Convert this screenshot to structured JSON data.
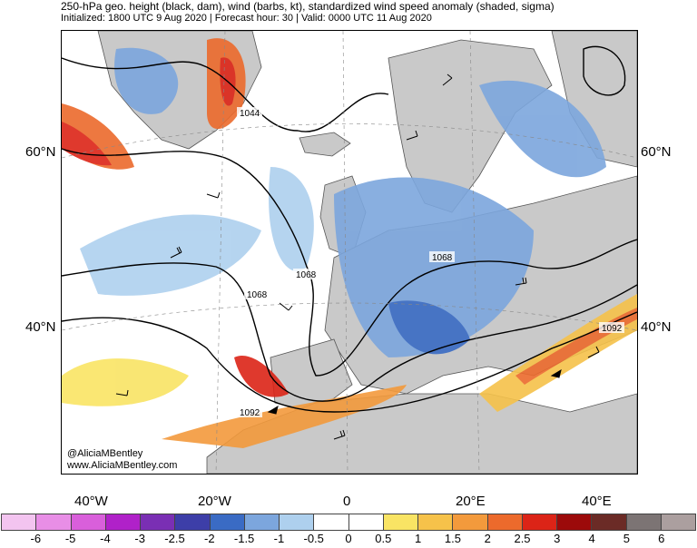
{
  "header": {
    "title": "250-hPa geo. height (black, dam), wind (barbs, kt), standardized wind speed anomaly (shaded, sigma)",
    "subtitle": "Initialized: 1800 UTC 9 Aug 2020 | Forecast hour: 30 | Valid: 0000 UTC 11 Aug 2020"
  },
  "axes": {
    "lat_left": [
      "60°N",
      "40°N"
    ],
    "lat_right": [
      "60°N",
      "40°N"
    ],
    "lon": [
      "40°W",
      "20°W",
      "0",
      "20°E",
      "40°E"
    ]
  },
  "contour_labels": [
    "1044",
    "1068",
    "1068",
    "1068",
    "1092",
    "1092"
  ],
  "credit": {
    "twitter": "@AliciaMBentley",
    "website": "www.AliciaMBentley.com"
  },
  "colorbar": {
    "labels": [
      "-6",
      "-5",
      "-4",
      "-3",
      "-2.5",
      "-2",
      "-1.5",
      "-1",
      "-0.5",
      "0",
      "0.5",
      "1",
      "1.5",
      "2",
      "2.5",
      "3",
      "4",
      "5",
      "6"
    ],
    "colors": [
      "#f3c4f0",
      "#e88ee6",
      "#d95fdb",
      "#b021c9",
      "#7a2fb4",
      "#3d3ea8",
      "#3a6bc4",
      "#7ca6dd",
      "#aed0ee",
      "#ffffff",
      "#ffffff",
      "#f9e464",
      "#f6c24a",
      "#f39a3c",
      "#ec6a2c",
      "#dc2417",
      "#9c0a0a",
      "#6b2b26",
      "#7c7474",
      "#ab9f9f"
    ]
  },
  "colors": {
    "land": "#c9c9c9",
    "contour": "#000000",
    "coast": "#555555"
  }
}
